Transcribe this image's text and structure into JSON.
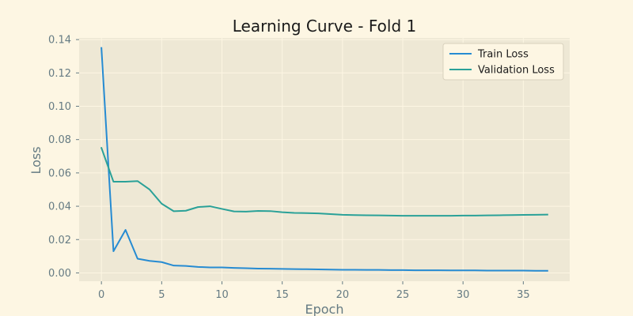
{
  "chart_data": {
    "type": "line",
    "title": "Learning Curve - Fold 1",
    "xlabel": "Epoch",
    "ylabel": "Loss",
    "xlim": [
      -1.85,
      38.85
    ],
    "ylim": [
      -0.005,
      0.141
    ],
    "xticks": [
      0,
      5,
      10,
      15,
      20,
      25,
      30,
      35
    ],
    "yticks": [
      0.0,
      0.02,
      0.04,
      0.06,
      0.08,
      0.1,
      0.12,
      0.14
    ],
    "x": [
      0,
      1,
      2,
      3,
      4,
      5,
      6,
      7,
      8,
      9,
      10,
      11,
      12,
      13,
      14,
      15,
      16,
      17,
      18,
      19,
      20,
      21,
      22,
      23,
      24,
      25,
      26,
      27,
      28,
      29,
      30,
      31,
      32,
      33,
      34,
      35,
      36,
      37
    ],
    "grid": true,
    "legend_position": "top-right",
    "series": [
      {
        "name": "Train Loss",
        "color": "#268bd2",
        "values": [
          0.135,
          0.013,
          0.0258,
          0.0085,
          0.0072,
          0.0065,
          0.0044,
          0.0042,
          0.0036,
          0.0033,
          0.0033,
          0.003,
          0.0028,
          0.0026,
          0.0025,
          0.0024,
          0.0023,
          0.0022,
          0.0021,
          0.002,
          0.0019,
          0.0019,
          0.0018,
          0.0018,
          0.0017,
          0.0017,
          0.0016,
          0.0016,
          0.0016,
          0.0015,
          0.0015,
          0.0015,
          0.0014,
          0.0014,
          0.0014,
          0.0014,
          0.0013,
          0.0013
        ]
      },
      {
        "name": "Validation Loss",
        "color": "#2aa198",
        "values": [
          0.075,
          0.0547,
          0.0547,
          0.0551,
          0.05,
          0.0415,
          0.037,
          0.0373,
          0.0395,
          0.04,
          0.0384,
          0.0369,
          0.0368,
          0.0372,
          0.0371,
          0.0364,
          0.036,
          0.0359,
          0.0357,
          0.0353,
          0.0349,
          0.0347,
          0.0346,
          0.0345,
          0.0344,
          0.0343,
          0.0343,
          0.0343,
          0.0343,
          0.0343,
          0.0344,
          0.0344,
          0.0345,
          0.0346,
          0.0347,
          0.0348,
          0.0349,
          0.035
        ]
      }
    ]
  },
  "colors": {
    "page_background": "#fdf6e3",
    "plot_background": "#eee8d5",
    "grid": "#fdf6e3",
    "tick_text": "#657b83"
  }
}
